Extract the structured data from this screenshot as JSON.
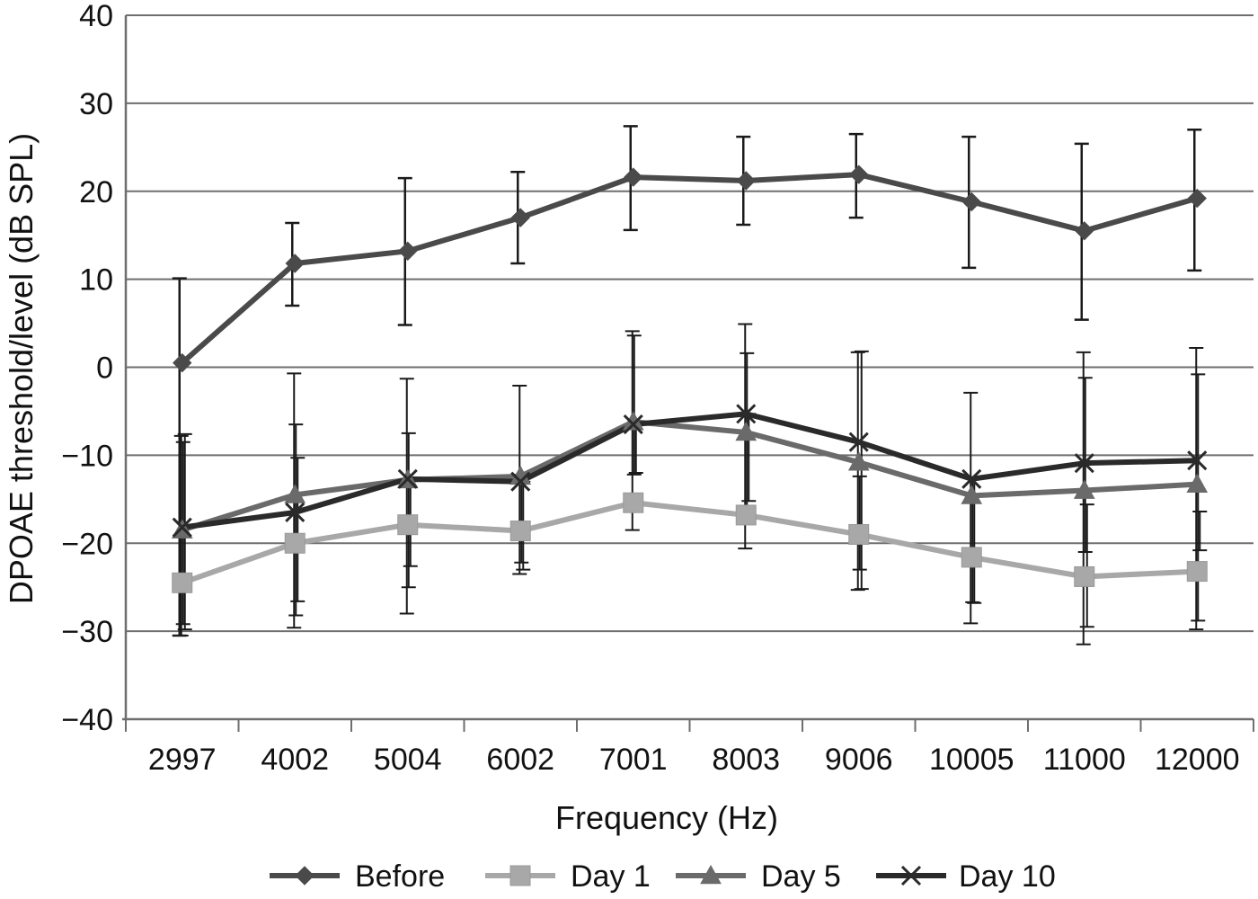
{
  "chart_data": {
    "type": "line",
    "title": "",
    "xlabel": "Frequency (Hz)",
    "ylabel": "DPOAE threshold/level (dB SPL)",
    "ylim": [
      -40,
      40
    ],
    "yticks": [
      40,
      30,
      20,
      10,
      0,
      -10,
      -20,
      -30,
      -40
    ],
    "ytick_labels": [
      "40",
      "30",
      "20",
      "10",
      "0",
      "−10",
      "−20",
      "−30",
      "−40"
    ],
    "categories": [
      "2997",
      "4002",
      "5004",
      "6002",
      "7001",
      "8003",
      "9006",
      "10005",
      "11000",
      "12000"
    ],
    "grid": true,
    "legend_position": "bottom",
    "series": [
      {
        "name": "Before",
        "color": "#4a4a4a",
        "marker": "diamond",
        "values": [
          0.5,
          11.8,
          13.2,
          17.0,
          21.6,
          21.2,
          21.9,
          18.8,
          15.5,
          19.2
        ],
        "err_low": [
          -30.5,
          7.0,
          4.8,
          11.8,
          15.6,
          16.2,
          17.0,
          11.3,
          5.4,
          11.0
        ],
        "err_high": [
          10.1,
          16.4,
          21.5,
          22.2,
          27.4,
          26.2,
          26.5,
          26.2,
          25.4,
          27.0
        ]
      },
      {
        "name": "Day 1",
        "color": "#a8a8a8",
        "marker": "square",
        "values": [
          -24.5,
          -20.0,
          -17.9,
          -18.6,
          -15.4,
          -16.8,
          -19.0,
          -21.6,
          -23.8,
          -23.2
        ],
        "err_low": [
          -30.5,
          -29.6,
          -28.0,
          -23.5,
          -18.5,
          -20.6,
          -25.3,
          -29.1,
          -31.5,
          -29.8
        ],
        "err_high": [
          -7.8,
          -0.7,
          -1.3,
          -2.1,
          4.1,
          4.9,
          1.7,
          -2.9,
          1.7,
          2.2
        ]
      },
      {
        "name": "Day 5",
        "color": "#6a6a6a",
        "marker": "triangle",
        "values": [
          -18.5,
          -14.5,
          -12.8,
          -12.4,
          -6.2,
          -7.4,
          -10.8,
          -14.6,
          -14.0,
          -13.3
        ],
        "err_low": [
          -29.2,
          -28.2,
          -25.0,
          -22.2,
          -12.2,
          -16.8,
          -23.0,
          -26.7,
          -21.0,
          -28.8
        ],
        "err_high": [
          -8.5,
          -6.5,
          -7.5,
          -12.4,
          3.6,
          1.6,
          -12.4,
          -12.6,
          -1.2,
          -0.8
        ]
      },
      {
        "name": "Day 10",
        "color": "#2a2a2a",
        "marker": "x",
        "values": [
          -18.2,
          -16.5,
          -12.7,
          -13.0,
          -6.5,
          -5.3,
          -8.5,
          -12.7,
          -10.9,
          -10.6
        ],
        "err_low": [
          -29.8,
          -26.6,
          -22.6,
          -23.0,
          -12.0,
          -15.2,
          -25.2,
          -26.8,
          -29.5,
          -20.8
        ],
        "err_high": [
          -7.6,
          -10.3,
          -12.7,
          -13.0,
          -6.5,
          -5.3,
          1.8,
          -12.7,
          -15.6,
          -16.4
        ]
      }
    ]
  }
}
